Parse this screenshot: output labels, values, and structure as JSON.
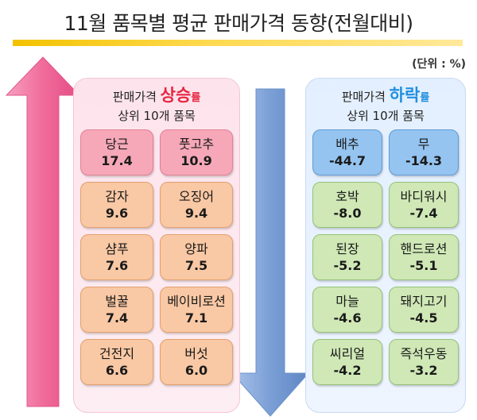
{
  "title": "11월 품목별 평균 판매가격 동향(전월대비)",
  "unit": "(단위 : %)",
  "up_panel": {
    "head_prefix": "판매가격 ",
    "head_rate": "상승",
    "head_suffix": "률",
    "head_line2": "상위 10개 품목"
  },
  "down_panel": {
    "head_prefix": "판매가격 ",
    "head_rate": "하락",
    "head_suffix": "률",
    "head_line2": "상위 10개 품목"
  },
  "colors": {
    "up_arrow": "#f06b9a",
    "down_arrow": "#7b9fd6",
    "rate_up": "#e8253f",
    "rate_down": "#1f8fe0"
  },
  "chart_data": {
    "type": "table",
    "title": "11월 품목별 평균 판매가격 동향(전월대비)",
    "unit": "%",
    "increase": [
      {
        "item": "당근",
        "value": "17.4"
      },
      {
        "item": "풋고추",
        "value": "10.9"
      },
      {
        "item": "감자",
        "value": "9.6"
      },
      {
        "item": "오징어",
        "value": "9.4"
      },
      {
        "item": "샴푸",
        "value": "7.6"
      },
      {
        "item": "양파",
        "value": "7.5"
      },
      {
        "item": "벌꿀",
        "value": "7.4"
      },
      {
        "item": "베이비로션",
        "value": "7.1"
      },
      {
        "item": "건전지",
        "value": "6.6"
      },
      {
        "item": "버섯",
        "value": "6.0"
      }
    ],
    "decrease": [
      {
        "item": "배추",
        "value": "-44.7"
      },
      {
        "item": "무",
        "value": "-14.3"
      },
      {
        "item": "호박",
        "value": "-8.0"
      },
      {
        "item": "바디워시",
        "value": "-7.4"
      },
      {
        "item": "된장",
        "value": "-5.2"
      },
      {
        "item": "핸드로션",
        "value": "-5.1"
      },
      {
        "item": "마늘",
        "value": "-4.6"
      },
      {
        "item": "돼지고기",
        "value": "-4.5"
      },
      {
        "item": "씨리얼",
        "value": "-4.2"
      },
      {
        "item": "즉석우동",
        "value": "-3.2"
      }
    ]
  }
}
